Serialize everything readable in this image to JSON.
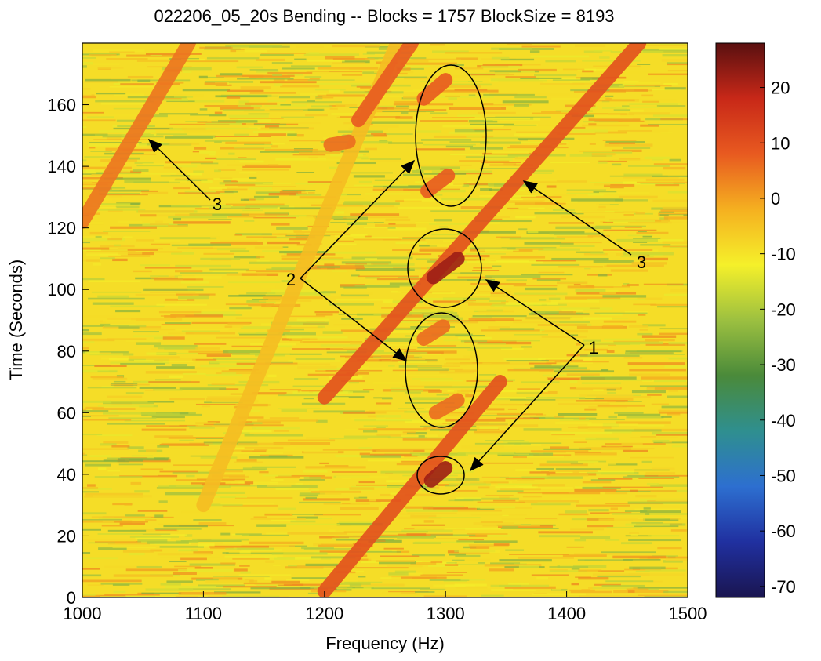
{
  "chart_data": {
    "type": "spectrogram",
    "title": "022206_05_20s Bending -- Blocks = 1757 BlockSize = 8193",
    "x_label": "Frequency (Hz)",
    "y_label": "Time (Seconds)",
    "xlim": [
      1000,
      1500
    ],
    "xticks": [
      1000,
      1100,
      1200,
      1300,
      1400,
      1500
    ],
    "ylim": [
      0,
      180
    ],
    "yticks": [
      0,
      20,
      40,
      60,
      80,
      100,
      120,
      140,
      160
    ],
    "clim": [
      -72,
      28
    ],
    "cticks": [
      -70,
      -60,
      -50,
      -40,
      -30,
      -20,
      -10,
      0,
      10,
      20
    ],
    "colormap": [
      "#1a1550",
      "#2030a0",
      "#2d6fd0",
      "#2f8f8f",
      "#4a8a3a",
      "#9cc040",
      "#f5f02a",
      "#f5b020",
      "#e85a20",
      "#c82818",
      "#5a1010"
    ],
    "streaks": [
      {
        "x": [
          1000,
          1088
        ],
        "y": [
          122,
          180
        ],
        "level": 5
      },
      {
        "x": [
          1100,
          1260
        ],
        "y": [
          30,
          180
        ],
        "level": -4
      },
      {
        "x": [
          1200,
          1345
        ],
        "y": [
          2,
          70
        ],
        "level": 10
      },
      {
        "x": [
          1200,
          1460
        ],
        "y": [
          65,
          180
        ],
        "level": 10
      },
      {
        "x": [
          1228,
          1272
        ],
        "y": [
          155,
          180
        ],
        "level": 8
      },
      {
        "x": [
          1205,
          1220
        ],
        "y": [
          147,
          148
        ],
        "level": 6
      },
      {
        "x": [
          1282,
          1300
        ],
        "y": [
          162,
          168
        ],
        "level": 8
      },
      {
        "x": [
          1285,
          1302
        ],
        "y": [
          132,
          137
        ],
        "level": 8
      },
      {
        "x": [
          1282,
          1298
        ],
        "y": [
          84,
          88
        ],
        "level": 6
      },
      {
        "x": [
          1292,
          1310
        ],
        "y": [
          60,
          64
        ],
        "level": 6
      },
      {
        "x": [
          1290,
          1310
        ],
        "y": [
          104,
          110
        ],
        "level": 22
      },
      {
        "x": [
          1288,
          1300
        ],
        "y": [
          38,
          42
        ],
        "level": 22
      }
    ],
    "annotations": [
      {
        "text": "1"
      },
      {
        "text": "2"
      },
      {
        "text": "3"
      },
      {
        "text": "3"
      }
    ]
  }
}
